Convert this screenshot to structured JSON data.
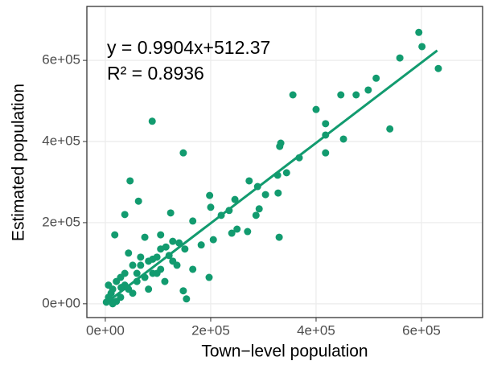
{
  "chart_data": {
    "type": "scatter",
    "xlabel": "Town−level population",
    "ylabel": "Estimated population",
    "annotations": [
      "y = 0.9904x+512.37",
      "R² = 0.8936"
    ],
    "color": "#129b6f",
    "grid": true,
    "xlim": [
      -35000,
      716000
    ],
    "ylim": [
      -34000,
      733000
    ],
    "xticks": [
      {
        "value": 0,
        "label": "0e+00"
      },
      {
        "value": 200000,
        "label": "2e+05"
      },
      {
        "value": 400000,
        "label": "4e+05"
      },
      {
        "value": 600000,
        "label": "6e+05"
      }
    ],
    "yticks": [
      {
        "value": 0,
        "label": "0e+00"
      },
      {
        "value": 200000,
        "label": "2e+05"
      },
      {
        "value": 400000,
        "label": "4e+05"
      },
      {
        "value": 600000,
        "label": "6e+05"
      }
    ],
    "fit": {
      "slope": 0.9904,
      "intercept": 512.37,
      "x": [
        0,
        630000
      ]
    },
    "x": [
      595000,
      601000,
      559000,
      632000,
      514000,
      499000,
      476000,
      447000,
      356000,
      400000,
      540000,
      418000,
      418000,
      89000,
      333000,
      331000,
      452000,
      418000,
      368000,
      148000,
      344000,
      327000,
      273000,
      47000,
      328000,
      304000,
      289000,
      292000,
      286000,
      246000,
      235000,
      63000,
      198000,
      200000,
      220000,
      166000,
      124000,
      37000,
      250000,
      330000,
      270000,
      240000,
      205000,
      182000,
      151000,
      128000,
      105000,
      75000,
      18000,
      44000,
      67000,
      98000,
      136000,
      166000,
      197000,
      148000,
      154000,
      113000,
      82000,
      29000,
      14000,
      6000,
      21000,
      52000,
      60000,
      90000,
      121000,
      37000,
      6000,
      2000,
      14000,
      29000,
      44000,
      75000,
      105000,
      128000,
      98000,
      60000,
      21000,
      11000,
      37000,
      52000,
      82000,
      105000,
      67000,
      115000,
      140000,
      90000,
      30000,
      10000
    ],
    "values": [
      669000,
      634000,
      606000,
      580000,
      556000,
      527000,
      515000,
      515000,
      515000,
      479000,
      431000,
      444000,
      416000,
      450000,
      396000,
      388000,
      406000,
      372000,
      360000,
      372000,
      323000,
      317000,
      303000,
      303000,
      273000,
      269000,
      289000,
      234000,
      218000,
      257000,
      230000,
      253000,
      267000,
      238000,
      218000,
      204000,
      224000,
      220000,
      184000,
      164000,
      178000,
      174000,
      158000,
      145000,
      135000,
      154000,
      170000,
      164000,
      170000,
      125000,
      95000,
      115000,
      95000,
      85000,
      65000,
      32000,
      12000,
      55000,
      36000,
      65000,
      36000,
      16000,
      6000,
      26000,
      55000,
      75000,
      119000,
      46000,
      46000,
      4000,
      0,
      16000,
      36000,
      65000,
      85000,
      105000,
      75000,
      75000,
      55000,
      26000,
      75000,
      95000,
      105000,
      135000,
      115000,
      140000,
      150000,
      110000,
      40000,
      10000
    ]
  }
}
